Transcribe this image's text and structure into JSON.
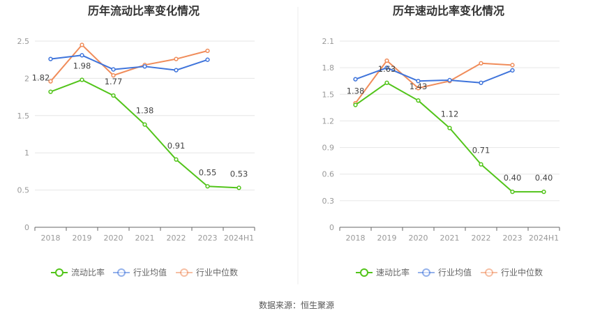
{
  "source_text": "数据来源：恒生聚源",
  "colors": {
    "company": "#52c41a",
    "industry_avg": "#3f74db",
    "industry_median": "#f08c5a",
    "grid": "#e6e6e6",
    "axis": "#666666"
  },
  "chart_data": [
    {
      "type": "line",
      "title": "历年流动比率变化情况",
      "categories": [
        "2018",
        "2019",
        "2020",
        "2021",
        "2022",
        "2023",
        "2024H1"
      ],
      "ylim": [
        0,
        2.5
      ],
      "yticks": [
        0,
        0.5,
        1,
        1.5,
        2,
        2.5
      ],
      "ytick_labels": [
        "0",
        "0.5",
        "1",
        "1.5",
        "2",
        "2.5"
      ],
      "legend_position": "bottom",
      "series": [
        {
          "key": "company",
          "name": "流动比率",
          "values": [
            1.82,
            1.98,
            1.77,
            1.38,
            0.91,
            0.55,
            0.53
          ],
          "labels": [
            "1.82",
            "1.98",
            "1.77",
            "1.38",
            "0.91",
            "0.55",
            "0.53"
          ]
        },
        {
          "key": "industry_avg",
          "name": "行业均值",
          "values": [
            2.26,
            2.31,
            2.12,
            2.16,
            2.11,
            2.25,
            null
          ]
        },
        {
          "key": "industry_median",
          "name": "行业中位数",
          "values": [
            1.96,
            2.45,
            2.04,
            2.18,
            2.26,
            2.37,
            null
          ]
        }
      ]
    },
    {
      "type": "line",
      "title": "历年速动比率变化情况",
      "categories": [
        "2018",
        "2019",
        "2020",
        "2021",
        "2022",
        "2023",
        "2024H1"
      ],
      "ylim": [
        0,
        2.1
      ],
      "yticks": [
        0,
        0.3,
        0.6,
        0.9,
        1.2,
        1.5,
        1.8,
        2.1
      ],
      "ytick_labels": [
        "0",
        "0.3",
        "0.6",
        "0.9",
        "1.2",
        "1.5",
        "1.8",
        "2.1"
      ],
      "legend_position": "bottom",
      "series": [
        {
          "key": "company",
          "name": "速动比率",
          "values": [
            1.38,
            1.63,
            1.43,
            1.12,
            0.71,
            0.4,
            0.4
          ],
          "labels": [
            "1.38",
            "1.63",
            "1.43",
            "1.12",
            "0.71",
            "0.40",
            "0.40"
          ]
        },
        {
          "key": "industry_avg",
          "name": "行业均值",
          "values": [
            1.67,
            1.8,
            1.65,
            1.66,
            1.63,
            1.77,
            null
          ]
        },
        {
          "key": "industry_median",
          "name": "行业中位数",
          "values": [
            1.4,
            1.88,
            1.57,
            1.65,
            1.85,
            1.83,
            null
          ]
        }
      ]
    }
  ]
}
